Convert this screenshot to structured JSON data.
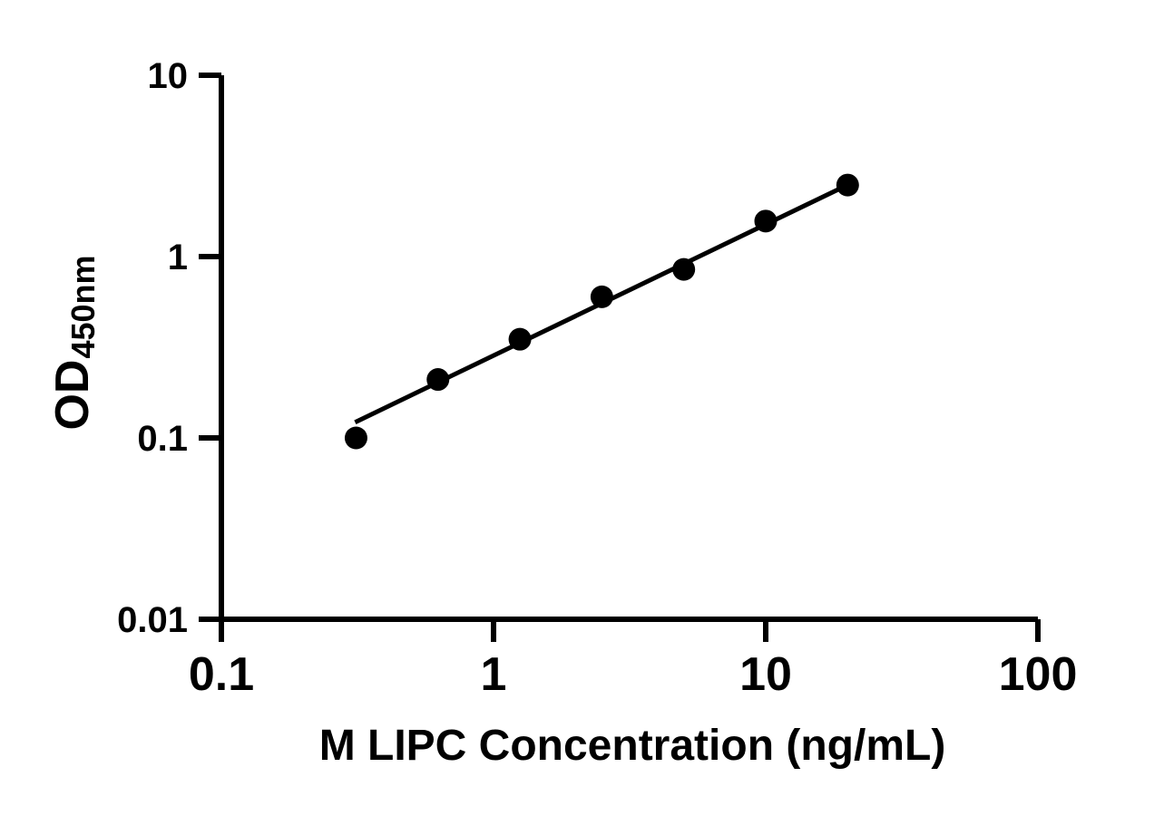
{
  "background": "#ffffff",
  "ink": "#000000",
  "chart_data": {
    "type": "scatter",
    "title": "",
    "xlabel": "M LIPC Concentration (ng/mL)",
    "ylabel": "OD",
    "ylabel_subscript": "450nm",
    "x_scale": "log",
    "y_scale": "log",
    "xlim": [
      0.1,
      100
    ],
    "ylim": [
      0.01,
      10
    ],
    "grid": false,
    "legend": "none",
    "x_ticks": [
      {
        "value": 0.1,
        "label": "0.1"
      },
      {
        "value": 1,
        "label": "1"
      },
      {
        "value": 10,
        "label": "10"
      },
      {
        "value": 100,
        "label": "100"
      }
    ],
    "y_ticks": [
      {
        "value": 0.01,
        "label": "0.01"
      },
      {
        "value": 0.1,
        "label": "0.1"
      },
      {
        "value": 1,
        "label": "1"
      },
      {
        "value": 10,
        "label": "10"
      }
    ],
    "series": [
      {
        "name": "standard-curve-points",
        "marker": "filled-circle",
        "marker_color": "#000000",
        "points": [
          {
            "x": 0.3125,
            "y": 0.1
          },
          {
            "x": 0.625,
            "y": 0.21
          },
          {
            "x": 1.25,
            "y": 0.35
          },
          {
            "x": 2.5,
            "y": 0.6
          },
          {
            "x": 5,
            "y": 0.85
          },
          {
            "x": 10,
            "y": 1.57
          },
          {
            "x": 20,
            "y": 2.48
          }
        ]
      }
    ],
    "trend_line": {
      "color": "#000000",
      "x1": 0.31,
      "y1": 0.122,
      "x2": 19.95,
      "y2": 2.48
    }
  }
}
